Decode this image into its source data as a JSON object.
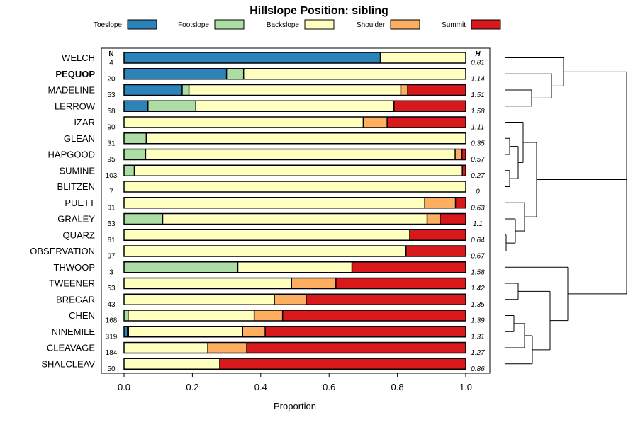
{
  "chart_data": {
    "type": "bar",
    "orientation": "horizontal-stacked",
    "title": "Hillslope Position: sibling",
    "xlabel": "Proportion",
    "ylabel": "",
    "xlim": [
      0,
      1
    ],
    "x_ticks": [
      "0.0",
      "0.2",
      "0.4",
      "0.6",
      "0.8",
      "1.0"
    ],
    "n_header": "N",
    "h_header": "H",
    "legend": [
      {
        "name": "Toeslope",
        "color": "#2b83ba"
      },
      {
        "name": "Footslope",
        "color": "#abdda4"
      },
      {
        "name": "Backslope",
        "color": "#ffffbf"
      },
      {
        "name": "Shoulder",
        "color": "#fdae61"
      },
      {
        "name": "Summit",
        "color": "#d7191c"
      }
    ],
    "rows": [
      {
        "name": "WELCH",
        "bold": false,
        "n": "4",
        "h": "0.81",
        "values": [
          0.75,
          0,
          0.25,
          0,
          0
        ]
      },
      {
        "name": "PEQUOP",
        "bold": true,
        "n": "20",
        "h": "1.14",
        "values": [
          0.3,
          0.05,
          0.65,
          0,
          0
        ]
      },
      {
        "name": "MADELINE",
        "bold": false,
        "n": "53",
        "h": "1.51",
        "values": [
          0.17,
          0.02,
          0.62,
          0.02,
          0.17
        ]
      },
      {
        "name": "LERROW",
        "bold": false,
        "n": "58",
        "h": "1.58",
        "values": [
          0.07,
          0.14,
          0.58,
          0,
          0.21
        ]
      },
      {
        "name": "IZAR",
        "bold": false,
        "n": "90",
        "h": "1.11",
        "values": [
          0,
          0,
          0.7,
          0.07,
          0.23
        ]
      },
      {
        "name": "GLEAN",
        "bold": false,
        "n": "31",
        "h": "0.35",
        "values": [
          0,
          0.065,
          0.935,
          0,
          0
        ]
      },
      {
        "name": "HAPGOOD",
        "bold": false,
        "n": "95",
        "h": "0.57",
        "values": [
          0,
          0.063,
          0.906,
          0.02,
          0.011
        ]
      },
      {
        "name": "SUMINE",
        "bold": false,
        "n": "103",
        "h": "0.27",
        "values": [
          0,
          0.03,
          0.96,
          0,
          0.01
        ]
      },
      {
        "name": "BLITZEN",
        "bold": false,
        "n": "7",
        "h": "0",
        "values": [
          0,
          0,
          1.0,
          0,
          0
        ]
      },
      {
        "name": "PUETT",
        "bold": false,
        "n": "91",
        "h": "0.63",
        "values": [
          0,
          0,
          0.88,
          0.09,
          0.03
        ]
      },
      {
        "name": "GRALEY",
        "bold": false,
        "n": "53",
        "h": "1.1",
        "values": [
          0,
          0.113,
          0.774,
          0.038,
          0.075
        ]
      },
      {
        "name": "QUARZ",
        "bold": false,
        "n": "61",
        "h": "0.64",
        "values": [
          0,
          0,
          0.836,
          0,
          0.164
        ]
      },
      {
        "name": "OBSERVATION",
        "bold": false,
        "n": "97",
        "h": "0.67",
        "values": [
          0,
          0,
          0.825,
          0,
          0.175
        ]
      },
      {
        "name": "THWOOP",
        "bold": false,
        "n": "3",
        "h": "1.58",
        "values": [
          0,
          0.333,
          0.334,
          0,
          0.333
        ]
      },
      {
        "name": "TWEENER",
        "bold": false,
        "n": "53",
        "h": "1.42",
        "values": [
          0,
          0,
          0.49,
          0.13,
          0.38
        ]
      },
      {
        "name": "BREGAR",
        "bold": false,
        "n": "43",
        "h": "1.35",
        "values": [
          0,
          0,
          0.44,
          0.093,
          0.467
        ]
      },
      {
        "name": "CHEN",
        "bold": false,
        "n": "168",
        "h": "1.39",
        "values": [
          0,
          0.012,
          0.369,
          0.083,
          0.536
        ]
      },
      {
        "name": "NINEMILE",
        "bold": false,
        "n": "319",
        "h": "1.31",
        "values": [
          0.01,
          0.003,
          0.334,
          0.066,
          0.587
        ]
      },
      {
        "name": "CLEAVAGE",
        "bold": false,
        "n": "184",
        "h": "1.27",
        "values": [
          0,
          0,
          0.245,
          0.114,
          0.641
        ]
      },
      {
        "name": "SHALCLEAV",
        "bold": false,
        "n": "50",
        "h": "0.86",
        "values": [
          0,
          0,
          0.28,
          0,
          0.72
        ]
      }
    ]
  }
}
